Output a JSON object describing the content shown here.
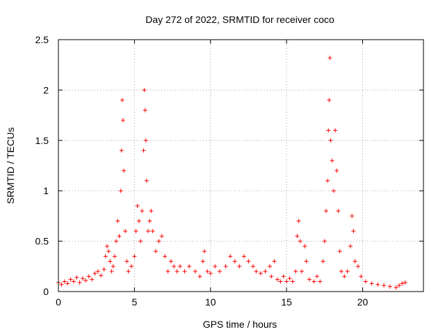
{
  "chart_data": {
    "type": "scatter",
    "title": "Day 272 of 2022, SRMTID for receiver coco",
    "xlabel": "GPS time / hours",
    "ylabel": "SRMTID / TECUs",
    "xlim": [
      0,
      24
    ],
    "ylim": [
      0,
      2.5
    ],
    "x_ticks": [
      0,
      5,
      10,
      15,
      20
    ],
    "x_tick_labels": [
      "0",
      "5",
      "10",
      "15",
      "20"
    ],
    "y_ticks": [
      0,
      0.5,
      1,
      1.5,
      2,
      2.5
    ],
    "y_tick_labels": [
      "0",
      "0.5",
      "1",
      "1.5",
      "2",
      "2.5"
    ],
    "grid": true,
    "marker": "+",
    "series": [
      {
        "name": "SRMTID",
        "color": "#ff0000",
        "points": [
          [
            0.0,
            0.09
          ],
          [
            0.2,
            0.07
          ],
          [
            0.4,
            0.1
          ],
          [
            0.6,
            0.08
          ],
          [
            0.8,
            0.12
          ],
          [
            1.0,
            0.1
          ],
          [
            1.2,
            0.14
          ],
          [
            1.4,
            0.09
          ],
          [
            1.6,
            0.13
          ],
          [
            1.8,
            0.11
          ],
          [
            2.0,
            0.15
          ],
          [
            2.2,
            0.12
          ],
          [
            2.4,
            0.18
          ],
          [
            2.6,
            0.2
          ],
          [
            2.8,
            0.16
          ],
          [
            3.0,
            0.22
          ],
          [
            3.1,
            0.35
          ],
          [
            3.2,
            0.45
          ],
          [
            3.3,
            0.4
          ],
          [
            3.4,
            0.3
          ],
          [
            3.5,
            0.2
          ],
          [
            3.6,
            0.25
          ],
          [
            3.7,
            0.35
          ],
          [
            3.8,
            0.5
          ],
          [
            3.9,
            0.7
          ],
          [
            4.0,
            0.55
          ],
          [
            4.1,
            1.0
          ],
          [
            4.15,
            1.4
          ],
          [
            4.2,
            1.9
          ],
          [
            4.25,
            1.7
          ],
          [
            4.3,
            1.2
          ],
          [
            4.4,
            0.6
          ],
          [
            4.5,
            0.3
          ],
          [
            4.6,
            0.2
          ],
          [
            4.8,
            0.25
          ],
          [
            5.0,
            0.35
          ],
          [
            5.1,
            0.6
          ],
          [
            5.2,
            0.85
          ],
          [
            5.3,
            0.7
          ],
          [
            5.4,
            0.5
          ],
          [
            5.5,
            0.8
          ],
          [
            5.6,
            1.4
          ],
          [
            5.65,
            2.0
          ],
          [
            5.7,
            1.8
          ],
          [
            5.75,
            1.5
          ],
          [
            5.8,
            1.1
          ],
          [
            5.9,
            0.6
          ],
          [
            6.0,
            0.7
          ],
          [
            6.1,
            0.8
          ],
          [
            6.2,
            0.6
          ],
          [
            6.4,
            0.4
          ],
          [
            6.6,
            0.5
          ],
          [
            6.8,
            0.55
          ],
          [
            7.0,
            0.35
          ],
          [
            7.2,
            0.2
          ],
          [
            7.4,
            0.3
          ],
          [
            7.6,
            0.25
          ],
          [
            7.8,
            0.2
          ],
          [
            8.0,
            0.25
          ],
          [
            8.3,
            0.2
          ],
          [
            8.6,
            0.25
          ],
          [
            9.0,
            0.2
          ],
          [
            9.3,
            0.15
          ],
          [
            9.5,
            0.3
          ],
          [
            9.6,
            0.4
          ],
          [
            9.8,
            0.2
          ],
          [
            10.0,
            0.18
          ],
          [
            10.3,
            0.25
          ],
          [
            10.6,
            0.2
          ],
          [
            11.0,
            0.25
          ],
          [
            11.3,
            0.35
          ],
          [
            11.6,
            0.3
          ],
          [
            11.9,
            0.25
          ],
          [
            12.2,
            0.35
          ],
          [
            12.5,
            0.3
          ],
          [
            12.8,
            0.25
          ],
          [
            13.0,
            0.2
          ],
          [
            13.3,
            0.18
          ],
          [
            13.6,
            0.2
          ],
          [
            13.9,
            0.25
          ],
          [
            14.0,
            0.15
          ],
          [
            14.2,
            0.3
          ],
          [
            14.4,
            0.12
          ],
          [
            14.6,
            0.1
          ],
          [
            14.8,
            0.15
          ],
          [
            15.0,
            0.1
          ],
          [
            15.2,
            0.13
          ],
          [
            15.4,
            0.1
          ],
          [
            15.6,
            0.2
          ],
          [
            15.7,
            0.55
          ],
          [
            15.8,
            0.7
          ],
          [
            15.9,
            0.5
          ],
          [
            16.0,
            0.2
          ],
          [
            16.2,
            0.45
          ],
          [
            16.3,
            0.3
          ],
          [
            16.5,
            0.12
          ],
          [
            16.8,
            0.1
          ],
          [
            17.0,
            0.15
          ],
          [
            17.2,
            0.1
          ],
          [
            17.4,
            0.3
          ],
          [
            17.5,
            0.5
          ],
          [
            17.6,
            0.8
          ],
          [
            17.7,
            1.1
          ],
          [
            17.75,
            1.6
          ],
          [
            17.8,
            1.9
          ],
          [
            17.85,
            2.32
          ],
          [
            17.9,
            1.5
          ],
          [
            18.0,
            1.3
          ],
          [
            18.1,
            1.0
          ],
          [
            18.2,
            1.6
          ],
          [
            18.3,
            1.2
          ],
          [
            18.4,
            0.8
          ],
          [
            18.5,
            0.4
          ],
          [
            18.6,
            0.2
          ],
          [
            18.8,
            0.15
          ],
          [
            19.0,
            0.2
          ],
          [
            19.2,
            0.45
          ],
          [
            19.3,
            0.75
          ],
          [
            19.4,
            0.6
          ],
          [
            19.5,
            0.3
          ],
          [
            19.7,
            0.25
          ],
          [
            19.9,
            0.15
          ],
          [
            20.2,
            0.1
          ],
          [
            20.6,
            0.08
          ],
          [
            21.0,
            0.07
          ],
          [
            21.4,
            0.06
          ],
          [
            21.8,
            0.05
          ],
          [
            22.2,
            0.04
          ],
          [
            22.4,
            0.06
          ],
          [
            22.6,
            0.08
          ],
          [
            22.8,
            0.09
          ]
        ]
      }
    ]
  }
}
